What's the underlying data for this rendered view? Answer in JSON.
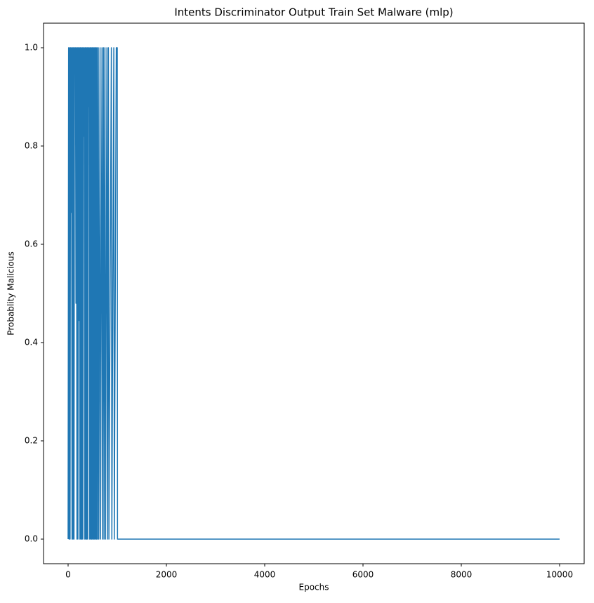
{
  "chart_data": {
    "type": "line",
    "title": "Intents Discriminator Output Train Set Malware (mlp)",
    "x_label": "Epochs",
    "y_label": "Probablity Malicious",
    "x": [
      0,
      10,
      20,
      30,
      40,
      50,
      60,
      70,
      80,
      90,
      100,
      110,
      120,
      130,
      140,
      150,
      160,
      170,
      180,
      190,
      200,
      210,
      220,
      230,
      240,
      250,
      260,
      270,
      280,
      290,
      300,
      310,
      320,
      330,
      340,
      350,
      360,
      370,
      380,
      390,
      400,
      410,
      420,
      430,
      440,
      450,
      460,
      470,
      480,
      490,
      500,
      510,
      520,
      530,
      540,
      550,
      560,
      570,
      580,
      590,
      600,
      615,
      625,
      650,
      660,
      690,
      700,
      720,
      730,
      750,
      760,
      790,
      800,
      820,
      830,
      880,
      890,
      930,
      940,
      980,
      1000,
      1005,
      10000
    ],
    "series": [
      {
        "color": "#1f77b4",
        "values": [
          0,
          1,
          0,
          1,
          0,
          1,
          0.665,
          1,
          0,
          1,
          0,
          1,
          0,
          1,
          0.95,
          1,
          0.48,
          1,
          0,
          1,
          0,
          1,
          0.445,
          1,
          0,
          1,
          0,
          1,
          0,
          1,
          0,
          1,
          0.82,
          1,
          0,
          1,
          0,
          1,
          0,
          1,
          0,
          1,
          0.88,
          1,
          0,
          1,
          0,
          1,
          0,
          1,
          0,
          1,
          0,
          1,
          0,
          1,
          0,
          1,
          0,
          1,
          0,
          1,
          0,
          1,
          0,
          1,
          0,
          1,
          0,
          1,
          0,
          1,
          0,
          1,
          0,
          1,
          0,
          1,
          0,
          1,
          1,
          0,
          0
        ]
      }
    ],
    "xlim": [
      -500,
      10500
    ],
    "ylim": [
      -0.05,
      1.05
    ],
    "xticks": [
      0,
      2000,
      4000,
      6000,
      8000,
      10000
    ],
    "yticks": [
      {
        "value": 0,
        "label": "0.0"
      },
      0.2,
      0.4,
      0.6,
      0.8,
      {
        "value": 1,
        "label": "1.0"
      }
    ]
  }
}
